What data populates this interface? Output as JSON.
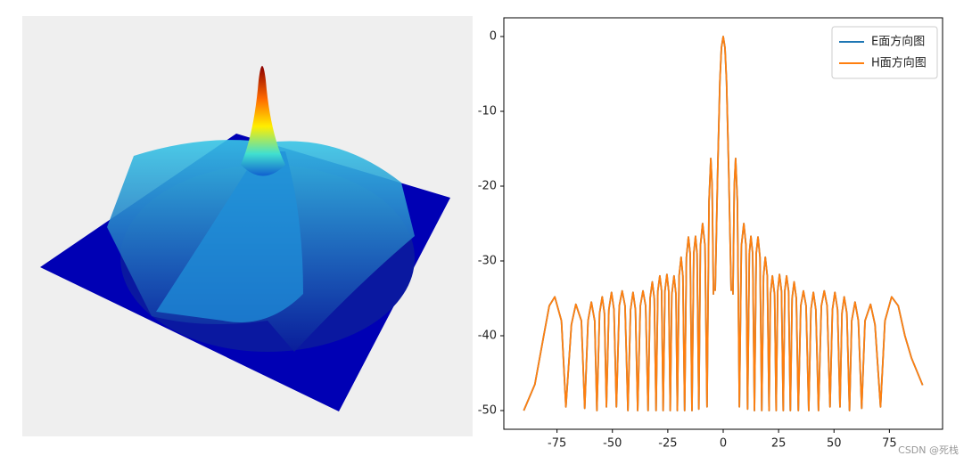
{
  "chart_data": {
    "type": "line",
    "x": [
      -90,
      -85,
      -81,
      -78.5,
      -76,
      -73,
      -71,
      -68.5,
      -66.5,
      -64,
      -62.5,
      -61.0,
      -59.5,
      -58.0,
      -57.0,
      -55.8,
      -54.6,
      -53.6,
      -52.7,
      -51.6,
      -50.4,
      -49.3,
      -48.2,
      -46.9,
      -45.6,
      -44.3,
      -43.0,
      -41.8,
      -40.7,
      -39.6,
      -38.6,
      -37.4,
      -36.2,
      -35.0,
      -33.9,
      -33.0,
      -32.0,
      -31.1,
      -30.3,
      -29.5,
      -28.6,
      -27.8,
      -27.1,
      -26.3,
      -25.4,
      -24.6,
      -23.9,
      -23.2,
      -22.2,
      -21.3,
      -20.7,
      -19.9,
      -19.0,
      -18.2,
      -17.4,
      -16.6,
      -15.7,
      -14.9,
      -14.1,
      -13.3,
      -12.5,
      -11.8,
      -11.0,
      -10.3,
      -9.3,
      -8.2,
      -7.3,
      -6.4,
      -5.6,
      -5.0,
      -4.4,
      -4,
      -3.6,
      -2.5,
      -1.5,
      -0.8,
      0,
      0.8,
      1.5,
      2.5,
      3.6,
      4,
      4.4,
      5.0,
      5.6,
      6.4,
      7.3,
      8.2,
      9.3,
      10.3,
      11.0,
      11.8,
      12.5,
      13.3,
      14.1,
      14.9,
      15.7,
      16.6,
      17.4,
      18.2,
      19.0,
      19.9,
      20.7,
      21.3,
      22.2,
      23.2,
      23.9,
      24.6,
      25.4,
      26.3,
      27.1,
      27.8,
      28.6,
      29.5,
      30.3,
      31.1,
      32.0,
      33.0,
      33.9,
      35.0,
      36.2,
      37.4,
      38.6,
      39.6,
      40.7,
      41.8,
      43.0,
      44.3,
      45.6,
      46.9,
      48.2,
      49.3,
      50.4,
      51.6,
      52.7,
      53.6,
      54.6,
      55.8,
      57.0,
      58.0,
      59.5,
      61.0,
      62.5,
      64,
      66.5,
      68.5,
      71,
      73,
      76,
      79,
      82,
      85,
      90
    ],
    "series": [
      {
        "name": "E面方向图",
        "color": "#1f77b4",
        "values": [
          -50,
          -46.5,
          -40,
          -36,
          -34.8,
          -38,
          -49.5,
          -38.5,
          -35.8,
          -38,
          -49.7,
          -38,
          -35.5,
          -38,
          -50,
          -37,
          -34.8,
          -37,
          -49.5,
          -36.5,
          -34.2,
          -36.5,
          -49.5,
          -36,
          -34,
          -36,
          -50,
          -36.5,
          -34.2,
          -36.5,
          -50,
          -36,
          -34,
          -36,
          -50,
          -35,
          -32.8,
          -35,
          -50,
          -34,
          -32,
          -34,
          -50,
          -34,
          -31.8,
          -34,
          -50,
          -34.5,
          -32,
          -34.5,
          -50,
          -32,
          -29.5,
          -32,
          -50,
          -29.5,
          -26.8,
          -29,
          -50,
          -29,
          -26.7,
          -29,
          -49.8,
          -28,
          -25,
          -28,
          -49.5,
          -22,
          -16.3,
          -20,
          -34.5,
          null,
          -34,
          -18,
          -6,
          -1.5,
          0,
          -1.5,
          -6,
          -18,
          -34,
          null,
          -34.5,
          -20,
          -16.3,
          -22,
          -49.5,
          -28,
          -25,
          -28,
          -49.8,
          -29,
          -26.7,
          -29,
          -50,
          -29,
          -26.8,
          -29.5,
          -50,
          -32,
          -29.5,
          -32,
          -50,
          -34.5,
          -32,
          -34.5,
          -50,
          -34,
          -31.8,
          -34,
          -50,
          -34,
          -32,
          -34,
          -50,
          -35,
          -32.8,
          -35,
          -50,
          -36,
          -34,
          -36,
          -50,
          -36.5,
          -34.2,
          -36.5,
          -50,
          -36,
          -34,
          -36,
          -49.5,
          -36.5,
          -34.2,
          -36.5,
          -49.5,
          -37,
          -34.8,
          -37,
          -50,
          -38,
          -35.5,
          -38,
          -49.7,
          -38,
          -35.8,
          -38.5,
          -49.5,
          -38,
          -34.8,
          -36,
          -40,
          -43,
          -46.6
        ]
      },
      {
        "name": "H面方向图",
        "color": "#ff7f0e",
        "values": [
          -50,
          -46.5,
          -40,
          -36,
          -34.8,
          -38,
          -49.5,
          -38.5,
          -35.8,
          -38,
          -49.7,
          -38,
          -35.5,
          -38,
          -50,
          -37,
          -34.8,
          -37,
          -49.5,
          -36.5,
          -34.2,
          -36.5,
          -49.5,
          -36,
          -34,
          -36,
          -50,
          -36.5,
          -34.2,
          -36.5,
          -50,
          -36,
          -34,
          -36,
          -50,
          -35,
          -32.8,
          -35,
          -50,
          -34,
          -32,
          -34,
          -50,
          -34,
          -31.8,
          -34,
          -50,
          -34.5,
          -32,
          -34.5,
          -50,
          -32,
          -29.5,
          -32,
          -50,
          -29.5,
          -26.8,
          -29,
          -50,
          -29,
          -26.7,
          -29,
          -49.8,
          -28,
          -25,
          -28,
          -49.5,
          -22,
          -16.3,
          -20,
          -34.5,
          null,
          -34,
          -18,
          -6,
          -1.5,
          0,
          -1.5,
          -6,
          -18,
          -34,
          null,
          -34.5,
          -20,
          -16.3,
          -22,
          -49.5,
          -28,
          -25,
          -28,
          -49.8,
          -29,
          -26.7,
          -29,
          -50,
          -29,
          -26.8,
          -29.5,
          -50,
          -32,
          -29.5,
          -32,
          -50,
          -34.5,
          -32,
          -34.5,
          -50,
          -34,
          -31.8,
          -34,
          -50,
          -34,
          -32,
          -34,
          -50,
          -35,
          -32.8,
          -35,
          -50,
          -36,
          -34,
          -36,
          -50,
          -36.5,
          -34.2,
          -36.5,
          -50,
          -36,
          -34,
          -36,
          -49.5,
          -36.5,
          -34.2,
          -36.5,
          -49.5,
          -37,
          -34.8,
          -37,
          -50,
          -38,
          -35.5,
          -38,
          -49.7,
          -38,
          -35.8,
          -38.5,
          -49.5,
          -38,
          -34.8,
          -36,
          -40,
          -43,
          -46.6
        ]
      }
    ],
    "xlim": [
      -99,
      99
    ],
    "xticks": [
      -75,
      -50,
      -25,
      0,
      25,
      50,
      75
    ],
    "ylim": [
      -52.5,
      2.5
    ],
    "yticks": [
      0,
      -10,
      -20,
      -30,
      -40,
      -50
    ],
    "legend": "upper right"
  },
  "watermark": "CSDN @死栈"
}
